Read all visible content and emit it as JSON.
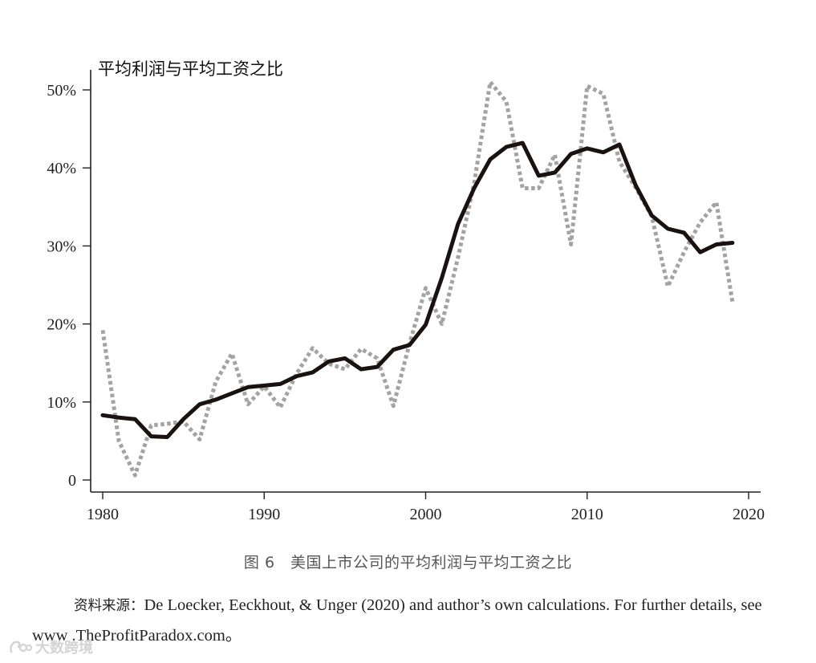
{
  "chart_data": {
    "type": "line",
    "ylabel": "平均利润与平均工资之比",
    "xlim": [
      1979.5,
      2020.5
    ],
    "ylim": [
      0,
      50
    ],
    "x_ticks": [
      "1980",
      "1990",
      "2000",
      "2010",
      "2020"
    ],
    "x_tick_values": [
      1980,
      1990,
      2000,
      2010,
      2020
    ],
    "y_ticks": [
      "0",
      "10%",
      "20%",
      "30%",
      "40%",
      "50%"
    ],
    "y_tick_values": [
      0,
      10,
      20,
      30,
      40,
      50
    ],
    "grid": false,
    "legend": "none",
    "series": [
      {
        "style": "dotted",
        "color": "#a3a3a3",
        "x": [
          1980,
          1981,
          1982,
          1983,
          1984,
          1985,
          1986,
          1987,
          1988,
          1989,
          1990,
          1991,
          1992,
          1993,
          1994,
          1995,
          1996,
          1997,
          1998,
          1999,
          2000,
          2001,
          2002,
          2003,
          2004,
          2005,
          2006,
          2007,
          2008,
          2009,
          2010,
          2011,
          2012,
          2013,
          2014,
          2015,
          2016,
          2017,
          2018,
          2019
        ],
        "values": [
          19.2,
          5.0,
          0.6,
          7.0,
          7.2,
          7.5,
          5.2,
          12.6,
          16.2,
          9.7,
          12.0,
          9.3,
          13.6,
          16.9,
          14.9,
          14.2,
          16.8,
          15.6,
          9.5,
          17.5,
          24.6,
          20.0,
          28.5,
          38.0,
          51.0,
          48.5,
          37.4,
          37.4,
          41.7,
          30.2,
          50.5,
          49.5,
          40.8,
          37.5,
          33.8,
          24.8,
          29.2,
          33.0,
          35.6,
          22.8
        ]
      },
      {
        "style": "solid",
        "color": "#1a1212",
        "x": [
          1980,
          1981,
          1982,
          1983,
          1984,
          1985,
          1986,
          1987,
          1988,
          1989,
          1990,
          1991,
          1992,
          1993,
          1994,
          1995,
          1996,
          1997,
          1998,
          1999,
          2000,
          2001,
          2002,
          2003,
          2004,
          2005,
          2006,
          2007,
          2008,
          2009,
          2010,
          2011,
          2012,
          2013,
          2014,
          2015,
          2016,
          2017,
          2018,
          2019
        ],
        "values": [
          8.3,
          8.0,
          7.8,
          5.6,
          5.5,
          7.8,
          9.7,
          10.3,
          11.1,
          11.9,
          12.1,
          12.3,
          13.3,
          13.8,
          15.2,
          15.6,
          14.2,
          14.5,
          16.7,
          17.3,
          19.9,
          25.9,
          32.8,
          37.4,
          41.1,
          42.7,
          43.2,
          39.0,
          39.4,
          41.8,
          42.5,
          42.0,
          43.0,
          37.8,
          33.9,
          32.2,
          31.7,
          29.2,
          30.2,
          30.4
        ]
      }
    ]
  },
  "caption": "图 6　美国上市公司的平均利润与平均工资之比",
  "source_prefix": "资料来源：",
  "source_text": "De Loecker, Eeckhout, & Unger (2020) and author’s own calculations. For further details, see www .TheProfitParadox.com。",
  "watermark_text": "大数跨境"
}
